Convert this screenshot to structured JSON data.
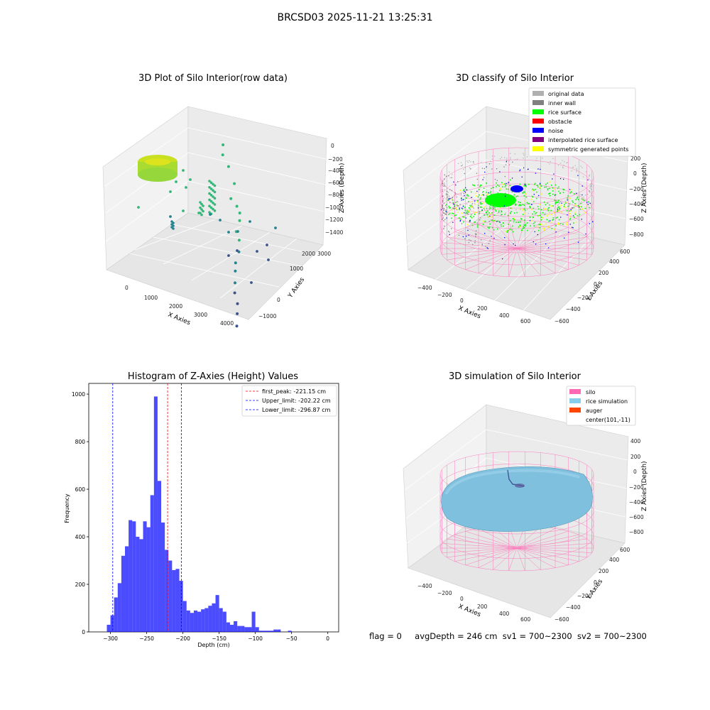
{
  "figure": {
    "title": "BRCSD03 2025-11-21 13:25:31"
  },
  "panel1": {
    "title": "3D Plot of Silo Interior(row data)",
    "xlabel": "X Axies",
    "ylabel": "Y Axies",
    "zlabel": "Z Axies (Depth)",
    "xticks": [
      "0",
      "1000",
      "2000",
      "3000",
      "4000"
    ],
    "yticks": [
      "−1000",
      "0",
      "1000",
      "2000",
      "3000"
    ],
    "zticks": [
      "0",
      "−200",
      "−400",
      "−600",
      "−800",
      "−1000",
      "−1200",
      "−1400"
    ],
    "colors": {
      "ring": "#b8e024",
      "mid": "#35b779",
      "low": "#26828e",
      "deep": "#3b528b"
    }
  },
  "panel2": {
    "title": "3D classify of Silo Interior",
    "xlabel": "X Axies",
    "ylabel": "Y Axies",
    "zlabel": "Z Axies (Depth)",
    "xticks": [
      "−400",
      "−200",
      "0",
      "200",
      "400",
      "600"
    ],
    "yticks": [
      "−600",
      "−400",
      "−200",
      "0",
      "200",
      "400",
      "600"
    ],
    "zticks": [
      "200",
      "0",
      "−200",
      "−400",
      "−600",
      "−800"
    ],
    "legend": [
      {
        "label": "original data",
        "color": "#b0b0b0"
      },
      {
        "label": "inner wall",
        "color": "#808080"
      },
      {
        "label": "rice surface",
        "color": "#00ff00"
      },
      {
        "label": "obstacle",
        "color": "#ff0000"
      },
      {
        "label": "noise",
        "color": "#0000ff"
      },
      {
        "label": "interpolated rice surface",
        "color": "#800080"
      },
      {
        "label": "symmetric generated points",
        "color": "#ffff00"
      }
    ],
    "wire_color": "#ff69b4"
  },
  "panel3": {
    "title": "Histogram of Z-Axies (Height) Values",
    "legend": [
      {
        "label": "first_peak: -221.15 cm",
        "color": "#ff0000"
      },
      {
        "label": "Upper_limit: -202.22 cm",
        "color": "#0000ff"
      },
      {
        "label": "Lower_limit: -296.87 cm",
        "color": "#0000ff"
      }
    ]
  },
  "panel4": {
    "title": "3D simulation of Silo Interior",
    "xlabel": "X Axies",
    "ylabel": "Y Axies",
    "zlabel": "Z Axies (Depth)",
    "xticks": [
      "−400",
      "−200",
      "0",
      "200",
      "400",
      "600"
    ],
    "yticks": [
      "−600",
      "−400",
      "−200",
      "0",
      "200",
      "400",
      "600"
    ],
    "zticks": [
      "400",
      "200",
      "0",
      "−200",
      "−400",
      "−600",
      "−800"
    ],
    "legend": [
      {
        "label": "silo",
        "color": "#ff69b4"
      },
      {
        "label": "rice simulation",
        "color": "#87ceeb"
      },
      {
        "label": "auger",
        "color": "#ff4500"
      },
      {
        "label": "center(101,-11)",
        "color": ""
      }
    ]
  },
  "status": {
    "flag": "flag = 0",
    "avg": "avgDepth = 246 cm",
    "sv1": "sv1 = 700~2300",
    "sv2": "sv2 = 700~2300"
  },
  "chart_data": [
    {
      "type": "scatter",
      "title": "3D Plot of Silo Interior(row data)",
      "xlabel": "X Axies",
      "ylabel": "Y Axies",
      "zlabel": "Z Axies (Depth)",
      "xlim": [
        -500,
        4500
      ],
      "ylim": [
        -1300,
        3400
      ],
      "zlim": [
        -1500,
        100
      ],
      "note_series": [
        {
          "name": "",
          "points": [
            {
              "x": 200,
              "y": 2900,
              "z": -200
            },
            {
              "x": 400,
              "y": 2700,
              "z": -250
            },
            {
              "x": 800,
              "y": 2500,
              "z": -300
            },
            {
              "x": 1200,
              "y": 2300,
              "z": -500
            },
            {
              "x": 1400,
              "y": 2000,
              "z": -600
            },
            {
              "x": 1700,
              "y": 1900,
              "z": -650
            },
            {
              "x": 1900,
              "y": 1800,
              "z": -700
            },
            {
              "x": 2000,
              "y": 1700,
              "z": -800
            },
            {
              "x": 2100,
              "y": 1500,
              "z": -900
            },
            {
              "x": 2300,
              "y": 1400,
              "z": -1000
            },
            {
              "x": 2500,
              "y": 1200,
              "z": -1100
            },
            {
              "x": 2600,
              "y": 1000,
              "z": -1200
            },
            {
              "x": 2800,
              "y": 800,
              "z": -1200
            },
            {
              "x": 3000,
              "y": 600,
              "z": -1300
            },
            {
              "x": 3200,
              "y": 400,
              "z": -1350
            },
            {
              "x": 3500,
              "y": 200,
              "z": -1400
            },
            {
              "x": 3700,
              "y": 0,
              "z": -1450
            },
            {
              "x": 4000,
              "y": -300,
              "z": -1450
            }
          ]
        }
      ]
    },
    {
      "type": "scatter",
      "title": "3D classify of Silo Interior",
      "xlabel": "X Axies",
      "ylabel": "Y Axies",
      "zlabel": "Z Axies (Depth)",
      "xlim": [
        -500,
        700
      ],
      "ylim": [
        -650,
        650
      ],
      "zlim": [
        -900,
        250
      ],
      "series": [
        {
          "name": "original data"
        },
        {
          "name": "inner wall"
        },
        {
          "name": "rice surface"
        },
        {
          "name": "obstacle"
        },
        {
          "name": "noise"
        },
        {
          "name": "interpolated rice surface"
        },
        {
          "name": "symmetric generated points"
        }
      ]
    },
    {
      "type": "bar",
      "title": "Histogram of Z-Axies (Height) Values",
      "xlabel": "Depth (cm)",
      "ylabel": "Frequency",
      "xlim": [
        -330,
        15
      ],
      "ylim": [
        0,
        1045
      ],
      "xticks": [
        -300,
        -250,
        -200,
        -150,
        -100,
        -50,
        0
      ],
      "yticks": [
        0,
        200,
        400,
        600,
        800,
        1000
      ],
      "bin_start": -305,
      "bin_width": 5,
      "values": [
        30,
        70,
        145,
        205,
        320,
        360,
        470,
        465,
        400,
        390,
        465,
        440,
        575,
        990,
        635,
        460,
        345,
        300,
        260,
        265,
        215,
        130,
        90,
        80,
        90,
        85,
        95,
        100,
        110,
        120,
        155,
        100,
        85,
        40,
        30,
        45,
        25,
        25,
        20,
        20,
        85,
        20,
        5,
        5,
        5,
        5,
        10,
        10,
        0,
        0,
        5,
        0
      ],
      "bar_color": "#0000ff",
      "vlines": [
        {
          "name": "first_peak: -221.15 cm",
          "x": -221.15,
          "color": "#ff0000"
        },
        {
          "name": "Upper_limit: -202.22 cm",
          "x": -202.22,
          "color": "#0000ff"
        },
        {
          "name": "Lower_limit: -296.87 cm",
          "x": -296.87,
          "color": "#0000ff"
        }
      ],
      "legend_position": "upper right"
    },
    {
      "type": "scatter",
      "title": "3D simulation of Silo Interior",
      "xlabel": "X Axies",
      "ylabel": "Y Axies",
      "zlabel": "Z Axies (Depth)",
      "xlim": [
        -500,
        700
      ],
      "ylim": [
        -650,
        650
      ],
      "zlim": [
        -900,
        450
      ],
      "series": [
        {
          "name": "silo"
        },
        {
          "name": "rice simulation"
        },
        {
          "name": "auger"
        },
        {
          "name": "center(101,-11)"
        }
      ]
    }
  ]
}
